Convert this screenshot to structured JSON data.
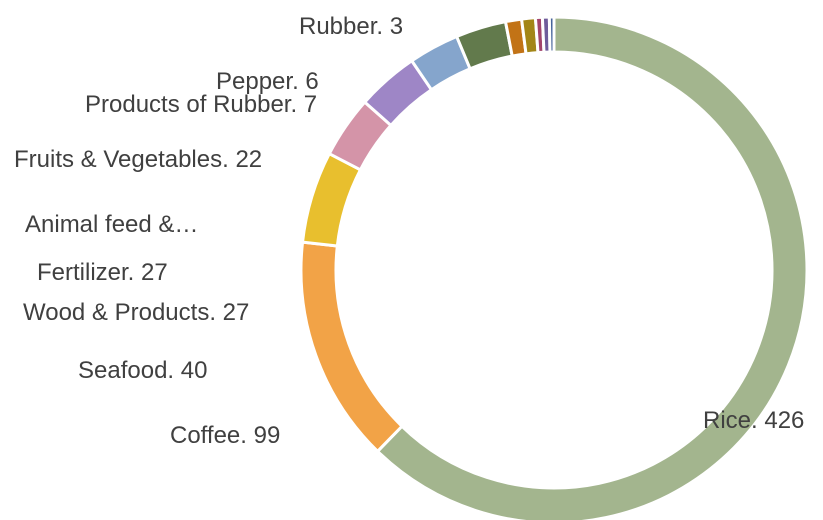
{
  "chart_data": {
    "type": "pie",
    "title": "",
    "slices": [
      {
        "name": "Rice",
        "value": 426,
        "label": "Rice. 426",
        "color": "#a3b58e"
      },
      {
        "name": "Coffee",
        "value": 99,
        "label": "Coffee. 99",
        "color": "#f2a347"
      },
      {
        "name": "Seafood",
        "value": 40,
        "label": "Seafood. 40",
        "color": "#e8bf2e"
      },
      {
        "name": "Wood & Products",
        "value": 27,
        "label": "Wood & Products. 27",
        "color": "#d494a8"
      },
      {
        "name": "Fertilizer",
        "value": 27,
        "label": "Fertilizer. 27",
        "color": "#9e86c6"
      },
      {
        "name": "Animal feed &…",
        "value": 22,
        "label": "Animal feed &…",
        "color": "#85a5cc"
      },
      {
        "name": "Fruits & Vegetables",
        "value": 22,
        "label": "Fruits & Vegetables. 22",
        "color": "#627a4c"
      },
      {
        "name": "Products of Rubber",
        "value": 7,
        "label": "Products of Rubber. 7",
        "color": "#c27316"
      },
      {
        "name": "Pepper",
        "value": 6,
        "label": "Pepper. 6",
        "color": "#a38617"
      },
      {
        "name": "Rubber",
        "value": 3,
        "label": "Rubber. 3",
        "color": "#a3446b"
      },
      {
        "name": "",
        "value": 3,
        "label": "",
        "color": "#6f5c9a"
      },
      {
        "name": "",
        "value": 2,
        "label": "",
        "color": "#46639b"
      }
    ]
  }
}
